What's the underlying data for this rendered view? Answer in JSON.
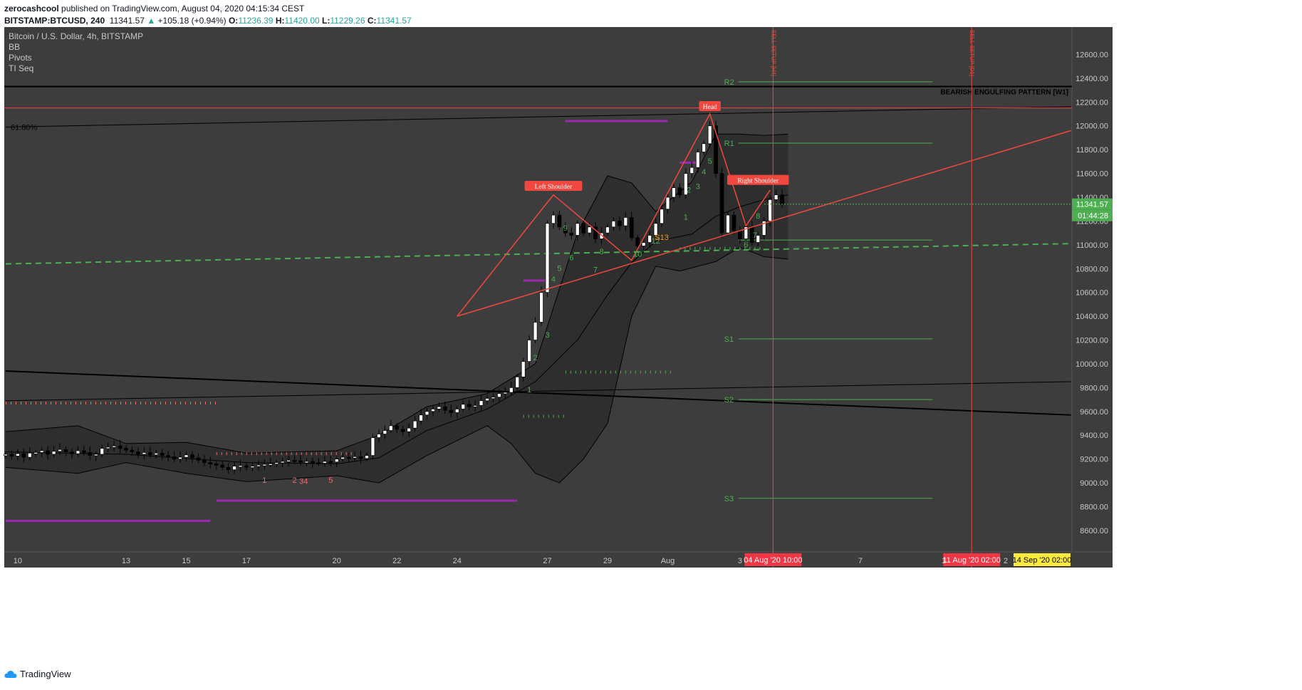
{
  "header": {
    "author": "zerocashcool",
    "published_text": " published on TradingView.com, August 04, 2020 04:15:34 CEST",
    "symbol": "BITSTAMP:BTCUSD, 240",
    "last": "11341.57",
    "change": "+105.18 (+0.94%)",
    "o_label": "O:",
    "o_value": "11236.39",
    "h_label": "H:",
    "h_value": "11420.00",
    "l_label": "L:",
    "l_value": "11229.26",
    "c_label": "C:",
    "c_value": "11341.57"
  },
  "legend": {
    "title": "Bitcoin / U.S. Dollar, 4h, BITSTAMP",
    "indicators": [
      "BB",
      "Pivots",
      "TI Seq"
    ]
  },
  "brand": "TradingView",
  "colors": {
    "background": "#3d3d3d",
    "bb_fill": "#2e2e2e",
    "candle_up": "#ffffff",
    "candle_down": "#000000",
    "pattern": "#f0483e",
    "pivot": "#4caf50",
    "support": "#4caf50",
    "resistance": "#f06a6a",
    "purple": "#9c27b0",
    "price_tag": "#4caf50",
    "date_tag": "#f23645",
    "date_tag_alt": "#ffeb3b"
  },
  "chart_data": {
    "type": "candlestick",
    "title": "Bitcoin / U.S. Dollar, 4h, BITSTAMP",
    "ylim": [
      8420,
      12830
    ],
    "y_ticks": [
      8600,
      8800,
      9000,
      9200,
      9400,
      9600,
      9800,
      10000,
      10200,
      10400,
      10600,
      10800,
      11000,
      11200,
      11400,
      11600,
      11800,
      12000,
      12200,
      12400,
      12600
    ],
    "x_ticks": [
      "10",
      "13",
      "15",
      "17",
      "20",
      "22",
      "24",
      "27",
      "29",
      "Aug",
      "3",
      "7"
    ],
    "x_tick_index": [
      2,
      20,
      30,
      40,
      55,
      65,
      75,
      90,
      100,
      110,
      122,
      142
    ],
    "close_series": [
      9240,
      9225,
      9245,
      9215,
      9250,
      9255,
      9270,
      9240,
      9265,
      9280,
      9260,
      9245,
      9270,
      9255,
      9230,
      9240,
      9290,
      9300,
      9310,
      9290,
      9275,
      9260,
      9240,
      9255,
      9235,
      9250,
      9230,
      9220,
      9200,
      9215,
      9235,
      9210,
      9190,
      9170,
      9160,
      9150,
      9130,
      9110,
      9140,
      9145,
      9130,
      9140,
      9150,
      9155,
      9160,
      9170,
      9180,
      9190,
      9185,
      9175,
      9180,
      9170,
      9165,
      9180,
      9175,
      9200,
      9215,
      9210,
      9220,
      9205,
      9230,
      9380,
      9410,
      9440,
      9480,
      9450,
      9430,
      9460,
      9520,
      9570,
      9600,
      9620,
      9640,
      9610,
      9590,
      9620,
      9660,
      9640,
      9650,
      9690,
      9710,
      9720,
      9750,
      9760,
      9800,
      9890,
      10020,
      10200,
      10350,
      10600,
      11180,
      11250,
      11150,
      11100,
      11080,
      11180,
      11100,
      11150,
      11050,
      11100,
      11150,
      11200,
      11160,
      11230,
      11060,
      10990,
      11020,
      11080,
      11180,
      11300,
      11400,
      11480,
      11420,
      11600,
      11650,
      11780,
      11850,
      12000,
      11600,
      11100,
      11250,
      11120,
      11050,
      11150,
      11020,
      11080,
      11200,
      11380,
      11420,
      11341.57
    ],
    "current_price": 11341.57,
    "price_tag": "11341.57",
    "countdown": "01:44:28",
    "bollinger": {
      "upper": [
        {
          "x": 0,
          "y": 9430
        },
        {
          "x": 12,
          "y": 9480
        },
        {
          "x": 20,
          "y": 9330
        },
        {
          "x": 30,
          "y": 9340
        },
        {
          "x": 40,
          "y": 9250
        },
        {
          "x": 55,
          "y": 9270
        },
        {
          "x": 62,
          "y": 9400
        },
        {
          "x": 70,
          "y": 9640
        },
        {
          "x": 80,
          "y": 9750
        },
        {
          "x": 88,
          "y": 10000
        },
        {
          "x": 95,
          "y": 11100
        },
        {
          "x": 100,
          "y": 11580
        },
        {
          "x": 104,
          "y": 11520
        },
        {
          "x": 108,
          "y": 11280
        },
        {
          "x": 114,
          "y": 11530
        },
        {
          "x": 118,
          "y": 11930
        },
        {
          "x": 122,
          "y": 11930
        },
        {
          "x": 126,
          "y": 11920
        },
        {
          "x": 130,
          "y": 11930
        }
      ],
      "middle": [
        {
          "x": 0,
          "y": 9260
        },
        {
          "x": 20,
          "y": 9240
        },
        {
          "x": 40,
          "y": 9170
        },
        {
          "x": 55,
          "y": 9160
        },
        {
          "x": 62,
          "y": 9210
        },
        {
          "x": 70,
          "y": 9440
        },
        {
          "x": 80,
          "y": 9620
        },
        {
          "x": 88,
          "y": 9850
        },
        {
          "x": 95,
          "y": 10200
        },
        {
          "x": 100,
          "y": 10580
        },
        {
          "x": 104,
          "y": 10850
        },
        {
          "x": 108,
          "y": 11030
        },
        {
          "x": 114,
          "y": 11090
        },
        {
          "x": 118,
          "y": 11240
        },
        {
          "x": 122,
          "y": 11320
        },
        {
          "x": 126,
          "y": 11380
        },
        {
          "x": 130,
          "y": 11420
        }
      ],
      "lower": [
        {
          "x": 0,
          "y": 9130
        },
        {
          "x": 12,
          "y": 9080
        },
        {
          "x": 20,
          "y": 9170
        },
        {
          "x": 30,
          "y": 9080
        },
        {
          "x": 40,
          "y": 9010
        },
        {
          "x": 55,
          "y": 9060
        },
        {
          "x": 62,
          "y": 9000
        },
        {
          "x": 70,
          "y": 9230
        },
        {
          "x": 80,
          "y": 9480
        },
        {
          "x": 84,
          "y": 9330
        },
        {
          "x": 88,
          "y": 9080
        },
        {
          "x": 92,
          "y": 9000
        },
        {
          "x": 96,
          "y": 9200
        },
        {
          "x": 100,
          "y": 9500
        },
        {
          "x": 104,
          "y": 10400
        },
        {
          "x": 108,
          "y": 10820
        },
        {
          "x": 112,
          "y": 10780
        },
        {
          "x": 118,
          "y": 10860
        },
        {
          "x": 122,
          "y": 10980
        },
        {
          "x": 126,
          "y": 10900
        },
        {
          "x": 130,
          "y": 10880
        }
      ]
    },
    "pivots": [
      {
        "label": "R2",
        "value": 12370
      },
      {
        "label": "R1",
        "value": 11855
      },
      {
        "label": "",
        "value": 11040
      },
      {
        "label": "S1",
        "value": 10210
      },
      {
        "label": "S2",
        "value": 9700
      },
      {
        "label": "S3",
        "value": 8870
      }
    ],
    "pivot_x_range": [
      117,
      154
    ],
    "head_and_shoulders": {
      "points": [
        {
          "x": 75,
          "y": 10400
        },
        {
          "x": 91,
          "y": 11420
        },
        {
          "x": 104,
          "y": 10870
        },
        {
          "x": 117,
          "y": 12100
        },
        {
          "x": 123,
          "y": 11160
        },
        {
          "x": 127,
          "y": 11460
        }
      ],
      "labels": [
        {
          "text": "Left Shoulder",
          "x": 91,
          "y": 11490
        },
        {
          "text": "Head",
          "x": 117,
          "y": 12160
        },
        {
          "text": "Right Shoulder",
          "x": 125,
          "y": 11540
        }
      ]
    },
    "neckline": {
      "from": {
        "x": 75,
        "y": 10400
      },
      "to": {
        "x": 177,
        "y": 11960
      }
    },
    "fib_label": "61.80%",
    "fib_line": {
      "from": {
        "x": 0,
        "y": 11990
      },
      "to": {
        "x": 177,
        "y": 12160
      }
    },
    "red_horizontal": 12150,
    "black_horizontal": {
      "value": 12330,
      "label": "BEARISH ENGULFING PATTERN [W1]"
    },
    "black_down_trend": {
      "from": {
        "x": 0,
        "y": 9940
      },
      "to": {
        "x": 177,
        "y": 9570
      }
    },
    "black_up_trend": {
      "from": {
        "x": 0,
        "y": 9690
      },
      "to": {
        "x": 177,
        "y": 9850
      }
    },
    "green_dashed": {
      "from": {
        "x": 0,
        "y": 10840
      },
      "to": {
        "x": 177,
        "y": 11010
      }
    },
    "purple_levels": [
      {
        "x1": 0,
        "x2": 34,
        "y": 8680
      },
      {
        "x1": 35,
        "x2": 85,
        "y": 8850
      },
      {
        "x1": 93,
        "x2": 110,
        "y": 12040
      },
      {
        "x1": 86,
        "x2": 90,
        "y": 10700
      },
      {
        "x1": 112,
        "x2": 115,
        "y": 11690
      }
    ],
    "red_dot_levels": [
      {
        "x1": 0,
        "x2": 35,
        "y": 9670
      },
      {
        "x1": 35,
        "x2": 58,
        "y": 9245
      }
    ],
    "green_dot_levels": [
      {
        "x1": 86,
        "x2": 93,
        "y": 9560
      },
      {
        "x1": 93,
        "x2": 111,
        "y": 9930
      },
      {
        "x1": 112,
        "x2": 126,
        "y": 10970
      }
    ],
    "sequential_marks": [
      {
        "t": "1",
        "x": 43,
        "y": 9000,
        "c": "red"
      },
      {
        "t": "2",
        "x": 48,
        "y": 9000,
        "c": "red"
      },
      {
        "t": "34",
        "x": 49.5,
        "y": 8990,
        "c": "red"
      },
      {
        "t": "5",
        "x": 54,
        "y": 9000,
        "c": "red"
      },
      {
        "t": "1",
        "x": 87,
        "y": 9760,
        "c": "green"
      },
      {
        "t": "2",
        "x": 88,
        "y": 10030,
        "c": "green"
      },
      {
        "t": "3",
        "x": 90,
        "y": 10220,
        "c": "green"
      },
      {
        "t": "4",
        "x": 91,
        "y": 10690,
        "c": "green"
      },
      {
        "t": "5",
        "x": 92,
        "y": 10780,
        "c": "green"
      },
      {
        "t": "6",
        "x": 94,
        "y": 10870,
        "c": "green"
      },
      {
        "t": "7",
        "x": 98,
        "y": 10770,
        "c": "green"
      },
      {
        "t": "8",
        "x": 99,
        "y": 10920,
        "c": "green"
      },
      {
        "t": "9",
        "x": 93,
        "y": 11120,
        "c": "green"
      },
      {
        "t": "10",
        "x": 105,
        "y": 10900,
        "c": "green"
      },
      {
        "t": "12",
        "x": 108,
        "y": 11010,
        "c": "green"
      },
      {
        "t": "S13",
        "x": 109,
        "y": 11040,
        "c": "orange"
      },
      {
        "t": "1",
        "x": 113,
        "y": 11210,
        "c": "green"
      },
      {
        "t": "2",
        "x": 113.5,
        "y": 11440,
        "c": "green"
      },
      {
        "t": "3",
        "x": 115,
        "y": 11470,
        "c": "green"
      },
      {
        "t": "4",
        "x": 116,
        "y": 11590,
        "c": "green"
      },
      {
        "t": "5",
        "x": 117,
        "y": 11680,
        "c": "green"
      },
      {
        "t": "6",
        "x": 123,
        "y": 10980,
        "c": "green"
      },
      {
        "t": "7",
        "x": 124.5,
        "y": 11060,
        "c": "green"
      },
      {
        "t": "8",
        "x": 125,
        "y": 11220,
        "c": "green"
      }
    ],
    "vertical_markers": [
      {
        "x": 127.5,
        "label": "SELL SETUP [H4]",
        "tag": "04 Aug '20  10:00"
      },
      {
        "x": 160.5,
        "label": "SELL SETUP [D1]",
        "tag": "11 Aug '20  02:00"
      }
    ],
    "extra_date_tag": "14 Sep '20  02:00",
    "extra_x_labels": [
      "1",
      "2"
    ]
  }
}
